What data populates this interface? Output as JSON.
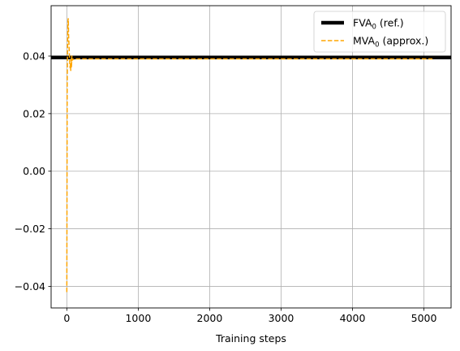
{
  "chart_data": {
    "type": "line",
    "xlabel": "Training steps",
    "ylabel": "",
    "xlim": [
      -220,
      5380
    ],
    "ylim": [
      -0.0475,
      0.0575
    ],
    "x_ticks": [
      0,
      1000,
      2000,
      3000,
      4000,
      5000
    ],
    "x_tick_labels": [
      "0",
      "1000",
      "2000",
      "3000",
      "4000",
      "5000"
    ],
    "y_ticks": [
      -0.04,
      -0.02,
      0.0,
      0.02,
      0.04
    ],
    "y_tick_labels": [
      "−0.04",
      "−0.02",
      "0.00",
      "0.02",
      "0.04"
    ],
    "grid": true,
    "legend_position": "top-right",
    "series": [
      {
        "name_main": "FVA",
        "name_sub": "0",
        "name_suffix": " (ref.)",
        "color": "#000000",
        "style": "solid",
        "x": [
          -220,
          5380
        ],
        "y": [
          0.0395,
          0.0395
        ]
      },
      {
        "name_main": "MVA",
        "name_sub": "0",
        "name_suffix": " (approx.)",
        "color": "#ffa500",
        "style": "dashed",
        "x": [
          0,
          5,
          10,
          15,
          20,
          25,
          30,
          35,
          40,
          45,
          50,
          55,
          60,
          65,
          70,
          75,
          80,
          90,
          100,
          150,
          300,
          1000,
          2000,
          3000,
          4000,
          5000,
          5120
        ],
        "y": [
          -0.042,
          0.03,
          0.043,
          0.052,
          0.053,
          0.047,
          0.044,
          0.041,
          0.038,
          0.036,
          0.037,
          0.035,
          0.039,
          0.036,
          0.04,
          0.0385,
          0.039,
          0.0388,
          0.039,
          0.039,
          0.039,
          0.039,
          0.039,
          0.039,
          0.039,
          0.039,
          0.039
        ]
      }
    ]
  }
}
